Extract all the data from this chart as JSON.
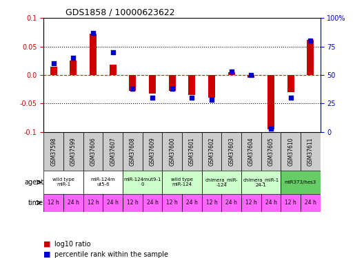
{
  "title": "GDS1858 / 10000623622",
  "samples": [
    "GSM37598",
    "GSM37599",
    "GSM37606",
    "GSM37607",
    "GSM37608",
    "GSM37609",
    "GSM37600",
    "GSM37601",
    "GSM37602",
    "GSM37603",
    "GSM37604",
    "GSM37605",
    "GSM37610",
    "GSM37611"
  ],
  "log10_ratio": [
    0.015,
    0.025,
    0.073,
    0.018,
    -0.028,
    -0.033,
    -0.028,
    -0.035,
    -0.04,
    0.005,
    -0.005,
    -0.095,
    -0.03,
    0.062
  ],
  "percentile_rank": [
    60,
    65,
    87,
    70,
    38,
    30,
    38,
    30,
    28,
    53,
    50,
    3,
    30,
    80
  ],
  "ylim_left": [
    -0.1,
    0.1
  ],
  "ylim_right": [
    0,
    100
  ],
  "yticks_left": [
    -0.1,
    -0.05,
    0.0,
    0.05,
    0.1
  ],
  "yticks_right": [
    0,
    25,
    50,
    75,
    100
  ],
  "bar_color": "#CC0000",
  "dot_color": "#0000CC",
  "agent_groups": [
    {
      "label": "wild type\nmiR-1",
      "cols": [
        0,
        1
      ],
      "color": "#FFFFFF"
    },
    {
      "label": "miR-124m\nut5-6",
      "cols": [
        2,
        3
      ],
      "color": "#FFFFFF"
    },
    {
      "label": "miR-124mut9-1\n0",
      "cols": [
        4,
        5
      ],
      "color": "#CCFFCC"
    },
    {
      "label": "wild type\nmiR-124",
      "cols": [
        6,
        7
      ],
      "color": "#CCFFCC"
    },
    {
      "label": "chimera_miR-\n-124",
      "cols": [
        8,
        9
      ],
      "color": "#CCFFCC"
    },
    {
      "label": "chimera_miR-1\n24-1",
      "cols": [
        10,
        11
      ],
      "color": "#CCFFCC"
    },
    {
      "label": "miR373/hes3",
      "cols": [
        12,
        13
      ],
      "color": "#66CC66"
    }
  ],
  "time_labels": [
    "12 h",
    "24 h",
    "12 h",
    "24 h",
    "12 h",
    "24 h",
    "12 h",
    "24 h",
    "12 h",
    "24 h",
    "12 h",
    "24 h",
    "12 h",
    "24 h"
  ],
  "time_color": "#FF66FF",
  "xlabel_color": "#888888",
  "grid_color": "#000000",
  "zero_line_color": "#FF0000",
  "legend_items": [
    {
      "label": "log10 ratio",
      "color": "#CC0000"
    },
    {
      "label": "percentile rank within the sample",
      "color": "#0000CC"
    }
  ]
}
